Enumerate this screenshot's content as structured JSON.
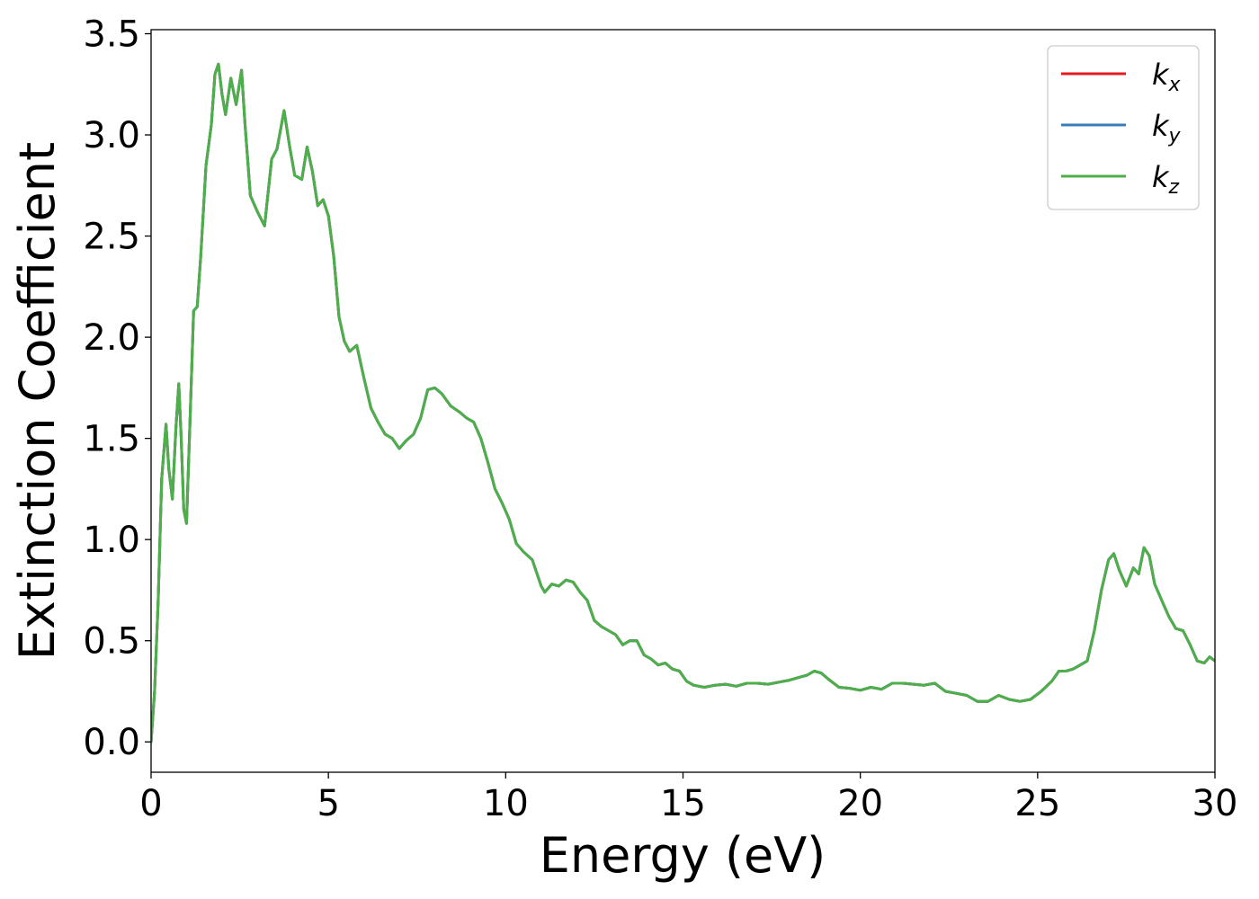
{
  "chart_data": {
    "type": "line",
    "title": "",
    "xlabel": "Energy (eV)",
    "ylabel": "Extinction Coefficient",
    "xlim": [
      0,
      30
    ],
    "ylim": [
      -0.15,
      3.52
    ],
    "xticks": [
      0,
      5,
      10,
      15,
      20,
      25,
      30
    ],
    "xtick_labels": [
      "0",
      "5",
      "10",
      "15",
      "20",
      "25",
      "30"
    ],
    "yticks": [
      0.0,
      0.5,
      1.0,
      1.5,
      2.0,
      2.5,
      3.0,
      3.5
    ],
    "ytick_labels": [
      "0.0",
      "0.5",
      "1.0",
      "1.5",
      "2.0",
      "2.5",
      "3.0",
      "3.5"
    ],
    "grid": false,
    "legend_position": "top-right",
    "x": [
      0,
      0.1,
      0.2,
      0.3,
      0.42,
      0.5,
      0.6,
      0.7,
      0.78,
      0.85,
      0.92,
      1.0,
      1.1,
      1.2,
      1.3,
      1.4,
      1.55,
      1.7,
      1.8,
      1.9,
      2.0,
      2.1,
      2.25,
      2.4,
      2.55,
      2.65,
      2.8,
      3.0,
      3.2,
      3.4,
      3.55,
      3.75,
      3.9,
      4.05,
      4.25,
      4.4,
      4.55,
      4.7,
      4.85,
      5.0,
      5.15,
      5.3,
      5.45,
      5.6,
      5.8,
      6.0,
      6.2,
      6.4,
      6.6,
      6.8,
      7.0,
      7.2,
      7.4,
      7.6,
      7.8,
      8.0,
      8.2,
      8.45,
      8.7,
      8.9,
      9.1,
      9.3,
      9.5,
      9.7,
      9.9,
      10.1,
      10.3,
      10.5,
      10.75,
      11.0,
      11.1,
      11.3,
      11.5,
      11.7,
      11.9,
      12.1,
      12.3,
      12.5,
      12.7,
      12.9,
      13.1,
      13.3,
      13.5,
      13.7,
      13.9,
      14.1,
      14.3,
      14.5,
      14.7,
      14.9,
      15.1,
      15.3,
      15.6,
      15.9,
      16.2,
      16.5,
      16.8,
      17.1,
      17.4,
      17.7,
      18.0,
      18.3,
      18.5,
      18.7,
      18.9,
      19.1,
      19.4,
      19.7,
      20.0,
      20.3,
      20.6,
      20.9,
      21.2,
      21.5,
      21.8,
      22.1,
      22.4,
      22.7,
      23.0,
      23.3,
      23.6,
      23.9,
      24.2,
      24.5,
      24.8,
      25.1,
      25.4,
      25.6,
      25.8,
      26.0,
      26.2,
      26.4,
      26.6,
      26.8,
      27.0,
      27.15,
      27.3,
      27.5,
      27.7,
      27.85,
      28.0,
      28.15,
      28.3,
      28.5,
      28.7,
      28.9,
      29.1,
      29.3,
      29.5,
      29.7,
      29.85,
      30.0
    ],
    "series": [
      {
        "name": "k",
        "subscript": "x",
        "color": "#e41a1c",
        "y": [
          0.0,
          0.25,
          0.7,
          1.3,
          1.57,
          1.35,
          1.2,
          1.55,
          1.77,
          1.5,
          1.15,
          1.08,
          1.6,
          2.13,
          2.15,
          2.4,
          2.85,
          3.05,
          3.3,
          3.35,
          3.2,
          3.1,
          3.28,
          3.15,
          3.32,
          3.05,
          2.7,
          2.62,
          2.55,
          2.88,
          2.93,
          3.12,
          2.95,
          2.8,
          2.78,
          2.94,
          2.82,
          2.65,
          2.68,
          2.6,
          2.4,
          2.1,
          1.98,
          1.93,
          1.96,
          1.8,
          1.65,
          1.58,
          1.52,
          1.5,
          1.45,
          1.49,
          1.52,
          1.6,
          1.74,
          1.75,
          1.72,
          1.66,
          1.63,
          1.6,
          1.58,
          1.5,
          1.38,
          1.25,
          1.18,
          1.1,
          0.98,
          0.94,
          0.9,
          0.77,
          0.74,
          0.78,
          0.77,
          0.8,
          0.79,
          0.74,
          0.7,
          0.6,
          0.57,
          0.55,
          0.53,
          0.48,
          0.5,
          0.5,
          0.43,
          0.41,
          0.38,
          0.39,
          0.36,
          0.35,
          0.3,
          0.28,
          0.27,
          0.28,
          0.285,
          0.275,
          0.29,
          0.29,
          0.285,
          0.295,
          0.305,
          0.32,
          0.33,
          0.35,
          0.34,
          0.31,
          0.27,
          0.265,
          0.255,
          0.27,
          0.26,
          0.29,
          0.29,
          0.285,
          0.28,
          0.29,
          0.25,
          0.24,
          0.23,
          0.2,
          0.2,
          0.23,
          0.21,
          0.2,
          0.21,
          0.25,
          0.3,
          0.35,
          0.35,
          0.36,
          0.38,
          0.4,
          0.55,
          0.75,
          0.9,
          0.93,
          0.85,
          0.77,
          0.86,
          0.83,
          0.96,
          0.92,
          0.78,
          0.7,
          0.62,
          0.56,
          0.55,
          0.48,
          0.4,
          0.39,
          0.42,
          0.4
        ]
      },
      {
        "name": "k",
        "subscript": "y",
        "color": "#377eb8",
        "y": [
          0.0,
          0.25,
          0.7,
          1.3,
          1.57,
          1.35,
          1.2,
          1.55,
          1.77,
          1.5,
          1.15,
          1.08,
          1.6,
          2.13,
          2.15,
          2.4,
          2.85,
          3.05,
          3.3,
          3.35,
          3.2,
          3.1,
          3.28,
          3.15,
          3.32,
          3.05,
          2.7,
          2.62,
          2.55,
          2.88,
          2.93,
          3.12,
          2.95,
          2.8,
          2.78,
          2.94,
          2.82,
          2.65,
          2.68,
          2.6,
          2.4,
          2.1,
          1.98,
          1.93,
          1.96,
          1.8,
          1.65,
          1.58,
          1.52,
          1.5,
          1.45,
          1.49,
          1.52,
          1.6,
          1.74,
          1.75,
          1.72,
          1.66,
          1.63,
          1.6,
          1.58,
          1.5,
          1.38,
          1.25,
          1.18,
          1.1,
          0.98,
          0.94,
          0.9,
          0.77,
          0.74,
          0.78,
          0.77,
          0.8,
          0.79,
          0.74,
          0.7,
          0.6,
          0.57,
          0.55,
          0.53,
          0.48,
          0.5,
          0.5,
          0.43,
          0.41,
          0.38,
          0.39,
          0.36,
          0.35,
          0.3,
          0.28,
          0.27,
          0.28,
          0.285,
          0.275,
          0.29,
          0.29,
          0.285,
          0.295,
          0.305,
          0.32,
          0.33,
          0.35,
          0.34,
          0.31,
          0.27,
          0.265,
          0.255,
          0.27,
          0.26,
          0.29,
          0.29,
          0.285,
          0.28,
          0.29,
          0.25,
          0.24,
          0.23,
          0.2,
          0.2,
          0.23,
          0.21,
          0.2,
          0.21,
          0.25,
          0.3,
          0.35,
          0.35,
          0.36,
          0.38,
          0.4,
          0.55,
          0.75,
          0.9,
          0.93,
          0.85,
          0.77,
          0.86,
          0.83,
          0.96,
          0.92,
          0.78,
          0.7,
          0.62,
          0.56,
          0.55,
          0.48,
          0.4,
          0.39,
          0.42,
          0.4
        ]
      },
      {
        "name": "k",
        "subscript": "z",
        "color": "#4daf4a",
        "y": [
          0.0,
          0.25,
          0.7,
          1.3,
          1.57,
          1.35,
          1.2,
          1.55,
          1.77,
          1.5,
          1.15,
          1.08,
          1.6,
          2.13,
          2.15,
          2.4,
          2.85,
          3.05,
          3.3,
          3.35,
          3.2,
          3.1,
          3.28,
          3.15,
          3.32,
          3.05,
          2.7,
          2.62,
          2.55,
          2.88,
          2.93,
          3.12,
          2.95,
          2.8,
          2.78,
          2.94,
          2.82,
          2.65,
          2.68,
          2.6,
          2.4,
          2.1,
          1.98,
          1.93,
          1.96,
          1.8,
          1.65,
          1.58,
          1.52,
          1.5,
          1.45,
          1.49,
          1.52,
          1.6,
          1.74,
          1.75,
          1.72,
          1.66,
          1.63,
          1.6,
          1.58,
          1.5,
          1.38,
          1.25,
          1.18,
          1.1,
          0.98,
          0.94,
          0.9,
          0.77,
          0.74,
          0.78,
          0.77,
          0.8,
          0.79,
          0.74,
          0.7,
          0.6,
          0.57,
          0.55,
          0.53,
          0.48,
          0.5,
          0.5,
          0.43,
          0.41,
          0.38,
          0.39,
          0.36,
          0.35,
          0.3,
          0.28,
          0.27,
          0.28,
          0.285,
          0.275,
          0.29,
          0.29,
          0.285,
          0.295,
          0.305,
          0.32,
          0.33,
          0.35,
          0.34,
          0.31,
          0.27,
          0.265,
          0.255,
          0.27,
          0.26,
          0.29,
          0.29,
          0.285,
          0.28,
          0.29,
          0.25,
          0.24,
          0.23,
          0.2,
          0.2,
          0.23,
          0.21,
          0.2,
          0.21,
          0.25,
          0.3,
          0.35,
          0.35,
          0.36,
          0.38,
          0.4,
          0.55,
          0.75,
          0.9,
          0.93,
          0.85,
          0.77,
          0.86,
          0.83,
          0.96,
          0.92,
          0.78,
          0.7,
          0.62,
          0.56,
          0.55,
          0.48,
          0.4,
          0.39,
          0.42,
          0.4
        ]
      }
    ]
  }
}
